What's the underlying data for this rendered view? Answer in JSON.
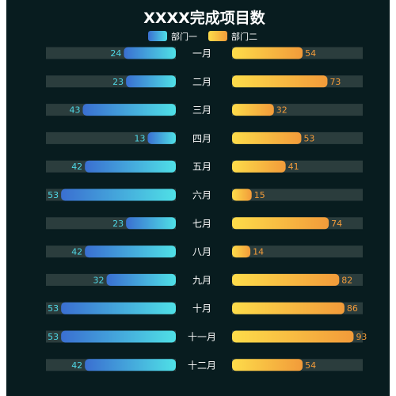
{
  "chart_data": {
    "type": "bar",
    "title": "XXXX完成项目数",
    "categories": [
      "一月",
      "二月",
      "三月",
      "四月",
      "五月",
      "六月",
      "七月",
      "八月",
      "九月",
      "十月",
      "十一月",
      "十二月"
    ],
    "series": [
      {
        "name": "部门一",
        "values": [
          24,
          23,
          43,
          13,
          42,
          53,
          23,
          42,
          32,
          53,
          53,
          42
        ],
        "color_start": "#3a6fd1",
        "color_end": "#4fe0e6",
        "label_color": "#4fd6e4"
      },
      {
        "name": "部门二",
        "values": [
          54,
          73,
          32,
          53,
          41,
          15,
          74,
          14,
          82,
          86,
          93,
          54
        ],
        "color_start": "#fddc4a",
        "color_end": "#f29b3a",
        "label_color": "#f29b3a"
      }
    ],
    "left_max": 60,
    "right_max": 100,
    "background_color": "#081c1f",
    "track_color": "#2b3d3d",
    "legend_position": "top-center",
    "grid": false
  }
}
